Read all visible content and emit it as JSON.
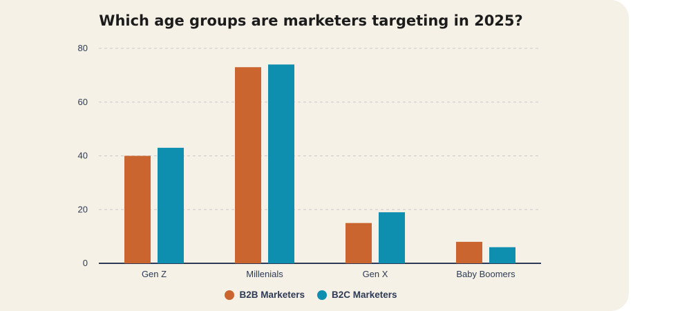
{
  "chart_data": {
    "type": "bar",
    "title": "Which age groups are marketers targeting in 2025?",
    "categories": [
      "Gen Z",
      "Millenials",
      "Gen X",
      "Baby Boomers"
    ],
    "series": [
      {
        "name": "B2B Marketers",
        "color": "#cb6530",
        "values": [
          40,
          73,
          15,
          8
        ]
      },
      {
        "name": "B2C Marketers",
        "color": "#0e8faf",
        "values": [
          43,
          74,
          19,
          6
        ]
      }
    ],
    "ylim": [
      0,
      80
    ],
    "yticks": [
      "0",
      "20",
      "40",
      "60",
      "80"
    ],
    "ytick_values": [
      0,
      20,
      40,
      60,
      80
    ],
    "xlabel": "",
    "ylabel": "",
    "grid": true,
    "legend_position": "bottom-center"
  },
  "colors": {
    "background": "#f6f1e6",
    "axis": "#2d3a55",
    "grid": "#c9c9c9"
  }
}
